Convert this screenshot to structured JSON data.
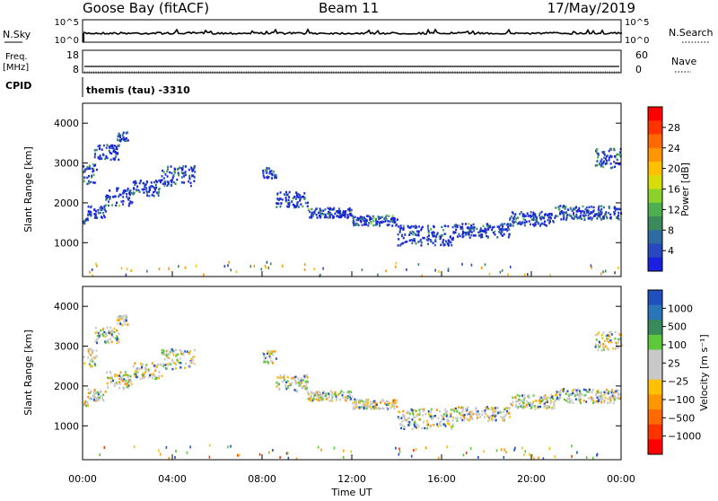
{
  "header": {
    "station": "Goose Bay (fitACF)",
    "beam": "Beam 11",
    "date": "17/May/2019"
  },
  "summary_panels": {
    "nsky_label": "N.Sky",
    "nsky_ticks": [
      "10^5",
      "10^0"
    ],
    "nsearch_label": "N.Search",
    "nsearch_ticks": [
      "10^5",
      "10^0"
    ],
    "freq_label_1": "Freq.",
    "freq_label_2": "[MHz]",
    "freq_ticks": [
      "18",
      "8"
    ],
    "nave_label": "Nave",
    "nave_ticks": [
      "60",
      "0"
    ],
    "cpid_label": "CPID",
    "cpid_value": "themis (tau) -3310"
  },
  "chart_data": [
    {
      "type": "heatmap",
      "name": "power",
      "ylabel": "Slant Range [km]",
      "yticks": [
        "4000",
        "3000",
        "2000",
        "1000"
      ],
      "ylim": [
        150,
        4500
      ],
      "colorbar_label": "Power [dB]",
      "colorbar_ticks": [
        "28",
        "24",
        "20",
        "16",
        "12",
        "8",
        "4"
      ],
      "colorbar_colors": [
        "#ff0000",
        "#ff3200",
        "#ff6a00",
        "#ff9500",
        "#ffc000",
        "#d7dd0a",
        "#8cd22d",
        "#4caf50",
        "#3a8a5a",
        "#2e6ba0",
        "#2848c0",
        "#1a20e0"
      ],
      "echo_bands": [
        {
          "t0": 0.0,
          "t1": 0.2,
          "r0": 1500,
          "r1": 1650
        },
        {
          "t0": 0.2,
          "t1": 1.0,
          "r0": 1650,
          "r1": 1950
        },
        {
          "t0": 1.0,
          "t1": 2.2,
          "r0": 1950,
          "r1": 2400
        },
        {
          "t0": 2.2,
          "t1": 3.5,
          "r0": 2200,
          "r1": 2600
        },
        {
          "t0": 3.5,
          "t1": 5.0,
          "r0": 2450,
          "r1": 2950
        },
        {
          "t0": 0.0,
          "t1": 0.6,
          "r0": 2500,
          "r1": 3000
        },
        {
          "t0": 0.5,
          "t1": 1.6,
          "r0": 3100,
          "r1": 3500
        },
        {
          "t0": 1.5,
          "t1": 2.0,
          "r0": 3550,
          "r1": 3800
        },
        {
          "t0": 8.0,
          "t1": 8.6,
          "r0": 2600,
          "r1": 2900
        },
        {
          "t0": 8.6,
          "t1": 10.0,
          "r0": 1900,
          "r1": 2300
        },
        {
          "t0": 10.0,
          "t1": 12.0,
          "r0": 1650,
          "r1": 1900
        },
        {
          "t0": 12.0,
          "t1": 14.0,
          "r0": 1450,
          "r1": 1700
        },
        {
          "t0": 14.0,
          "t1": 16.5,
          "r0": 950,
          "r1": 1450
        },
        {
          "t0": 16.5,
          "t1": 19.0,
          "r0": 1150,
          "r1": 1500
        },
        {
          "t0": 19.0,
          "t1": 21.0,
          "r0": 1450,
          "r1": 1800
        },
        {
          "t0": 21.0,
          "t1": 24.0,
          "r0": 1600,
          "r1": 1950
        },
        {
          "t0": 22.8,
          "t1": 24.0,
          "r0": 2900,
          "r1": 3400
        }
      ]
    },
    {
      "type": "heatmap",
      "name": "velocity",
      "ylabel": "Slant Range [km]",
      "yticks": [
        "4000",
        "3000",
        "2000",
        "1000"
      ],
      "ylim": [
        150,
        4500
      ],
      "colorbar_label": "Velocity [m s⁻¹]",
      "colorbar_ticks": [
        "1000",
        "500",
        "100",
        "25",
        "−25",
        "−100",
        "−500",
        "−1000"
      ],
      "colorbar_colors": [
        "#2050c0",
        "#2a74b8",
        "#3a8a5a",
        "#5cc83a",
        "#c8c8c8",
        "#c8c8c8",
        "#ffc000",
        "#ff9500",
        "#ff6a00",
        "#ff3200",
        "#ff0000"
      ]
    }
  ],
  "xaxis": {
    "label": "Time UT",
    "ticks": [
      "00:00",
      "04:00",
      "08:00",
      "12:00",
      "16:00",
      "20:00",
      "00:00"
    ]
  }
}
